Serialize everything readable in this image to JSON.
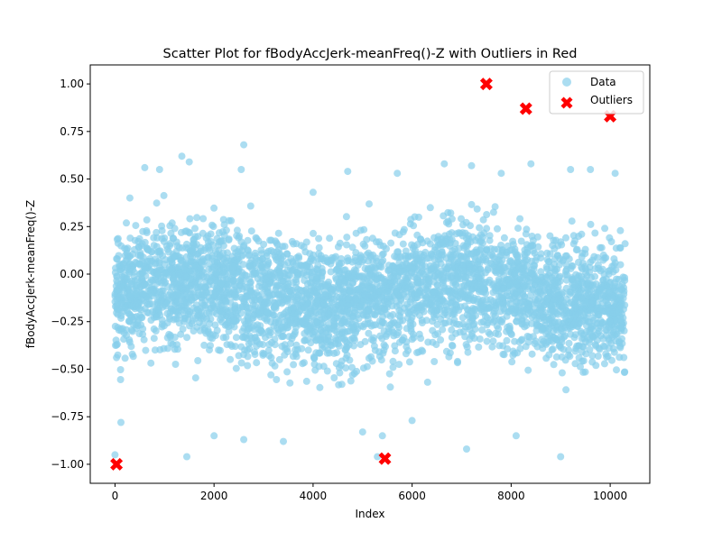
{
  "chart_data": {
    "type": "scatter",
    "title": "Scatter Plot for fBodyAccJerk-meanFreq()-Z with Outliers in Red",
    "xlabel": "Index",
    "ylabel": "fBodyAccJerk-meanFreq()-Z",
    "xlim": [
      -500,
      10800
    ],
    "ylim": [
      -1.1,
      1.1
    ],
    "x_ticks": [
      0,
      2000,
      4000,
      6000,
      8000,
      10000
    ],
    "x_tick_labels": [
      "0",
      "2000",
      "4000",
      "6000",
      "8000",
      "10000"
    ],
    "y_ticks": [
      -1.0,
      -0.75,
      -0.5,
      -0.25,
      0.0,
      0.25,
      0.5,
      0.75,
      1.0
    ],
    "y_tick_labels": [
      "−1.00",
      "−0.75",
      "−0.50",
      "−0.25",
      "0.00",
      "0.25",
      "0.50",
      "0.75",
      "1.00"
    ],
    "grid": false,
    "legend_position": "top-right",
    "series": [
      {
        "name": "Data",
        "marker": "circle",
        "color": "#87CEEB",
        "count": 10299,
        "x_range": [
          0,
          10298
        ],
        "y_range": [
          -0.96,
          0.68
        ],
        "sample_points": [
          [
            0,
            -0.95
          ],
          [
            120,
            -0.78
          ],
          [
            300,
            0.4
          ],
          [
            600,
            0.56
          ],
          [
            900,
            0.55
          ],
          [
            1350,
            0.62
          ],
          [
            1500,
            0.59
          ],
          [
            1450,
            -0.96
          ],
          [
            2000,
            -0.85
          ],
          [
            2600,
            0.68
          ],
          [
            2550,
            0.55
          ],
          [
            2600,
            -0.87
          ],
          [
            3400,
            -0.88
          ],
          [
            4000,
            0.43
          ],
          [
            4700,
            0.54
          ],
          [
            5000,
            -0.83
          ],
          [
            5300,
            -0.96
          ],
          [
            5400,
            -0.85
          ],
          [
            5700,
            0.53
          ],
          [
            6000,
            -0.77
          ],
          [
            6650,
            0.58
          ],
          [
            7100,
            -0.92
          ],
          [
            7200,
            0.57
          ],
          [
            7800,
            0.53
          ],
          [
            8100,
            -0.85
          ],
          [
            8400,
            0.58
          ],
          [
            9000,
            -0.96
          ],
          [
            9200,
            0.55
          ],
          [
            9600,
            0.55
          ],
          [
            10100,
            0.53
          ],
          [
            10300,
            0.16
          ]
        ]
      },
      {
        "name": "Outliers",
        "marker": "x",
        "color": "#FF0000",
        "points": [
          [
            30,
            -1.0
          ],
          [
            5450,
            -0.97
          ],
          [
            7500,
            1.0
          ],
          [
            8300,
            0.87
          ],
          [
            10000,
            0.83
          ]
        ]
      }
    ]
  }
}
